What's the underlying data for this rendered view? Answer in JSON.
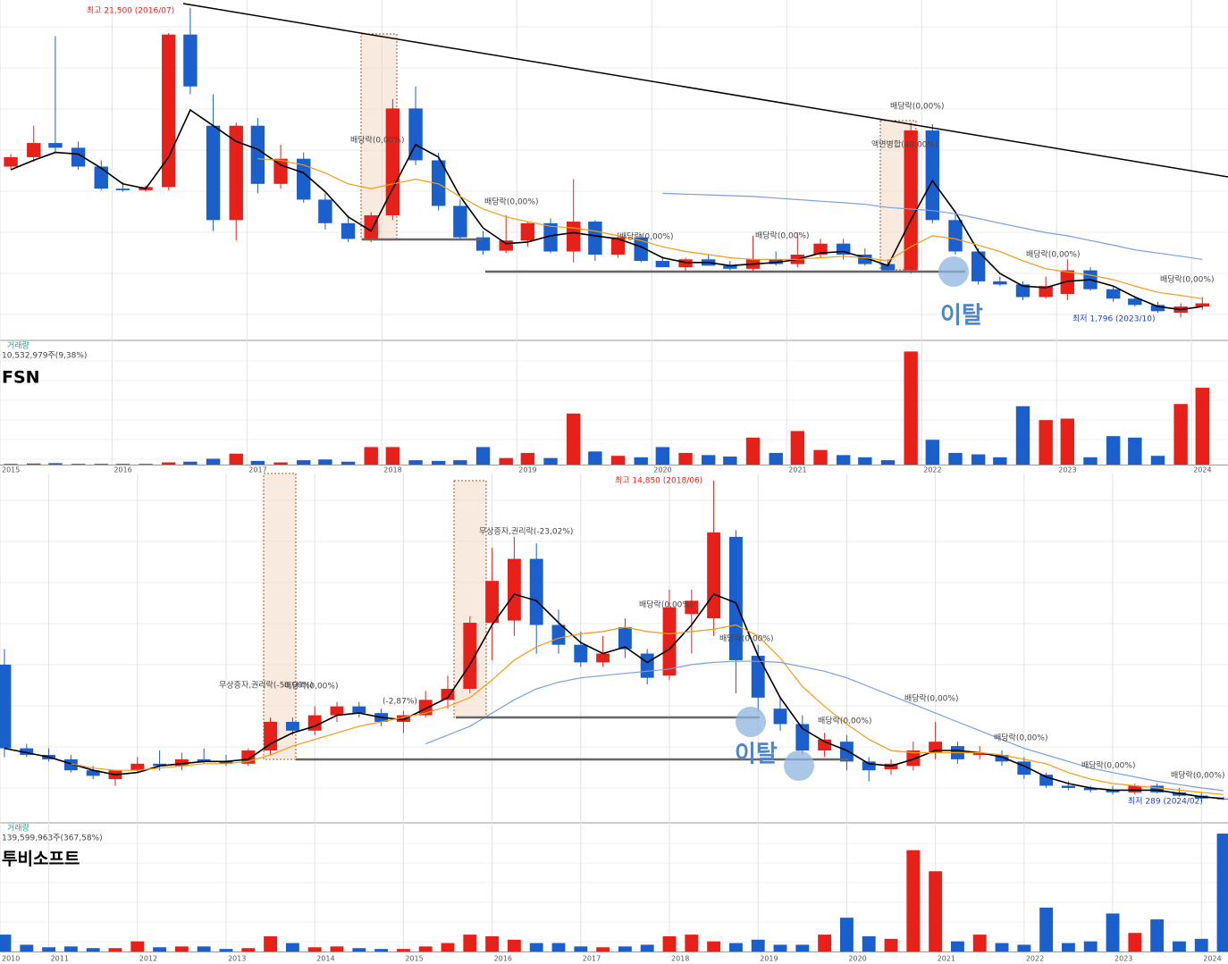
{
  "chart_data": [
    {
      "type": "candlestick",
      "title": "FSN",
      "up_color": "#e8201a",
      "down_color": "#1a5fcc",
      "xlim": [
        2015.17,
        2024.27
      ],
      "xticks": [
        {
          "value": 2015.17,
          "label": "2015"
        },
        2016,
        2017,
        2018,
        2019,
        2020,
        2021,
        2022,
        2023,
        2024
      ],
      "ylim": [
        400,
        22000
      ],
      "x": [
        2015.25,
        2015.42,
        2015.58,
        2015.75,
        2015.92,
        2016.08,
        2016.25,
        2016.42,
        2016.58,
        2016.75,
        2016.92,
        2017.08,
        2017.25,
        2017.42,
        2017.58,
        2017.75,
        2017.92,
        2018.08,
        2018.25,
        2018.42,
        2018.58,
        2018.75,
        2018.92,
        2019.08,
        2019.25,
        2019.42,
        2019.58,
        2019.75,
        2019.92,
        2020.08,
        2020.25,
        2020.42,
        2020.58,
        2020.75,
        2020.92,
        2021.08,
        2021.25,
        2021.42,
        2021.58,
        2021.75,
        2021.92,
        2022.08,
        2022.25,
        2022.42,
        2022.58,
        2022.75,
        2022.92,
        2023.08,
        2023.25,
        2023.42,
        2023.58,
        2023.75,
        2023.92,
        2024.08
      ],
      "open": [
        11400,
        12000,
        12900,
        12600,
        11400,
        10000,
        9900,
        10100,
        19800,
        14000,
        8000,
        14000,
        10300,
        11900,
        9300,
        7800,
        6800,
        8300,
        15100,
        11800,
        8900,
        6900,
        6050,
        6700,
        7800,
        6000,
        7900,
        5800,
        6900,
        5400,
        5000,
        5500,
        5100,
        4900,
        5500,
        5200,
        5800,
        6500,
        5800,
        5200,
        4800,
        13700,
        8000,
        6000,
        4100,
        3900,
        3100,
        3300,
        4800,
        3600,
        3000,
        2600,
        2100,
        2500
      ],
      "high": [
        12200,
        14000,
        19700,
        13000,
        11800,
        10400,
        10200,
        19900,
        21500,
        16000,
        14200,
        14500,
        12800,
        12300,
        9700,
        8300,
        8500,
        15700,
        16500,
        12300,
        9300,
        7300,
        8300,
        7900,
        8100,
        10600,
        8000,
        7200,
        7100,
        5700,
        5600,
        5800,
        5400,
        7000,
        6000,
        7200,
        6800,
        6800,
        6200,
        5500,
        14200,
        14100,
        8500,
        6200,
        4400,
        4100,
        4400,
        5500,
        5000,
        3800,
        3200,
        2800,
        2700,
        3100
      ],
      "low": [
        11200,
        11700,
        12300,
        11200,
        9900,
        9800,
        9800,
        9900,
        16000,
        7300,
        6700,
        9700,
        10000,
        9100,
        7400,
        6600,
        6600,
        8000,
        11500,
        8600,
        6700,
        5800,
        5900,
        6300,
        5900,
        5300,
        5400,
        5600,
        5300,
        5000,
        4700,
        5100,
        4800,
        4700,
        5100,
        5000,
        5600,
        5500,
        5100,
        4700,
        4600,
        7800,
        5800,
        3900,
        3800,
        2900,
        3000,
        2900,
        3500,
        2800,
        2500,
        2100,
        1796,
        2300
      ],
      "close": [
        12000,
        12900,
        12600,
        11400,
        10000,
        9900,
        10100,
        19800,
        16500,
        8000,
        14000,
        10300,
        11900,
        9300,
        7800,
        6800,
        8300,
        15100,
        11800,
        8900,
        6900,
        6050,
        6700,
        7800,
        6000,
        7900,
        5800,
        6900,
        5400,
        5000,
        5500,
        5100,
        4900,
        5500,
        5200,
        5800,
        6500,
        5800,
        5200,
        4800,
        13700,
        8000,
        6000,
        4100,
        3900,
        3100,
        3800,
        4800,
        3600,
        3000,
        2600,
        2200,
        2500,
        2700
      ],
      "lines": [
        {
          "color": "#000000",
          "values": [
            11200,
            11800,
            12300,
            12200,
            11300,
            10300,
            10000,
            12000,
            15000,
            14000,
            13000,
            12500,
            11500,
            11000,
            9800,
            8200,
            7300,
            10000,
            12800,
            12000,
            9500,
            7500,
            6500,
            6600,
            7000,
            7200,
            7000,
            6800,
            6300,
            5600,
            5300,
            5300,
            5100,
            5200,
            5300,
            5500,
            5900,
            6000,
            5600,
            5100,
            8000,
            10500,
            8500,
            6000,
            4600,
            3800,
            3700,
            4100,
            4200,
            3800,
            3100,
            2500,
            2300,
            2500
          ]
        },
        {
          "color": "#f39c12",
          "values": [
            null,
            null,
            null,
            null,
            null,
            null,
            null,
            null,
            null,
            null,
            null,
            11900,
            11800,
            11500,
            11000,
            10300,
            10000,
            10300,
            10600,
            10300,
            9500,
            8700,
            8200,
            7900,
            7600,
            7500,
            7300,
            7000,
            6700,
            6300,
            6000,
            5800,
            5600,
            5500,
            5500,
            5500,
            5600,
            5700,
            5600,
            5400,
            6300,
            7000,
            6800,
            6400,
            6000,
            5400,
            4900,
            4700,
            4500,
            4200,
            3800,
            3400,
            3200,
            3000
          ]
        },
        {
          "color": "#7b9fe0",
          "values": [
            null,
            null,
            null,
            null,
            null,
            null,
            null,
            null,
            null,
            null,
            null,
            null,
            null,
            null,
            null,
            null,
            null,
            null,
            null,
            null,
            null,
            null,
            null,
            null,
            null,
            null,
            null,
            null,
            null,
            9700,
            9650,
            9600,
            9550,
            9500,
            9400,
            9300,
            9200,
            9100,
            9000,
            8800,
            8700,
            8600,
            8400,
            8100,
            7800,
            7500,
            7200,
            7000,
            6700,
            6400,
            6100,
            5900,
            5700,
            5500
          ]
        }
      ],
      "volume": {
        "label": "거래량",
        "summary": "10,532,979주(9,38%)",
        "ylim": [
          0,
          16900000
        ],
        "values": [
          100000,
          150000,
          200000,
          100000,
          100000,
          100000,
          100000,
          300000,
          400000,
          800000,
          1500000,
          500000,
          300000,
          600000,
          700000,
          400000,
          2400000,
          2400000,
          600000,
          500000,
          600000,
          2400000,
          900000,
          1600000,
          900000,
          7000000,
          1800000,
          1200000,
          1000000,
          2400000,
          1600000,
          1300000,
          1100000,
          3700000,
          1600000,
          4600000,
          2000000,
          1300000,
          1000000,
          600000,
          15500000,
          3400000,
          1600000,
          1400000,
          1000000,
          8000000,
          6100000,
          6300000,
          1000000,
          3900000,
          3700000,
          1200000,
          8300000,
          10532979
        ]
      },
      "annotations": [
        "최고 21,500 (2016/07)",
        "배당락(0,00%)",
        "배당락(0,00%)",
        "배당락(0,00%)",
        "배당락(0,00%)",
        "배당락(0,00%)",
        "액면병합(40,00%)",
        "배당락(0,00%)",
        "배당락(0,00%)",
        "최저 1,796 (2023/10)",
        "이탈"
      ]
    },
    {
      "type": "candlestick",
      "title": "투비소프트",
      "up_color": "#e8201a",
      "down_color": "#1a5fcc",
      "xlim": [
        2010.45,
        2024.3
      ],
      "xticks": [
        {
          "value": 2010.45,
          "label": "2010"
        },
        2011,
        2012,
        2013,
        2014,
        2015,
        2016,
        2017,
        2018,
        2019,
        2020,
        2021,
        2022,
        2023,
        2024
      ],
      "ylim": [
        -644,
        15175
      ],
      "x": [
        2010.5,
        2010.75,
        2011,
        2011.25,
        2011.5,
        2011.75,
        2012,
        2012.25,
        2012.5,
        2012.75,
        2013,
        2013.25,
        2013.5,
        2013.75,
        2014,
        2014.25,
        2014.5,
        2014.75,
        2015,
        2015.25,
        2015.5,
        2015.75,
        2016,
        2016.25,
        2016.5,
        2016.75,
        2017,
        2017.25,
        2017.5,
        2017.75,
        2018,
        2018.25,
        2018.5,
        2018.75,
        2019,
        2019.25,
        2019.5,
        2019.75,
        2020,
        2020.25,
        2020.5,
        2020.75,
        2021,
        2021.25,
        2021.5,
        2021.75,
        2022,
        2022.25,
        2022.5,
        2022.75,
        2023,
        2023.25,
        2023.5,
        2023.75,
        2024,
        2024.25
      ],
      "open": [
        6500,
        2700,
        2400,
        2200,
        1700,
        1300,
        1700,
        2000,
        1900,
        2200,
        2100,
        2000,
        2600,
        3900,
        3500,
        4200,
        4600,
        4300,
        3900,
        4200,
        4900,
        5400,
        8400,
        8500,
        11300,
        8300,
        7400,
        6600,
        8200,
        7000,
        6000,
        8800,
        8600,
        12300,
        6900,
        4500,
        3800,
        2600,
        3000,
        2100,
        1750,
        1900,
        2500,
        2800,
        2400,
        2400,
        2100,
        1500,
        1000,
        900,
        800,
        700,
        1000,
        700,
        550,
        420
      ],
      "high": [
        7200,
        2900,
        2700,
        2400,
        1900,
        1700,
        2300,
        2600,
        2500,
        2700,
        2400,
        2700,
        4100,
        4100,
        4600,
        4800,
        4800,
        4500,
        4400,
        5300,
        6000,
        8700,
        11800,
        12300,
        12000,
        9000,
        8000,
        7800,
        8600,
        7200,
        9900,
        9900,
        14850,
        12600,
        7400,
        5000,
        4200,
        3400,
        3300,
        2300,
        2200,
        3000,
        3900,
        3000,
        2800,
        2600,
        2300,
        1600,
        1200,
        1000,
        1000,
        1100,
        1100,
        900,
        700,
        500
      ],
      "low": [
        2300,
        2300,
        2100,
        1600,
        1300,
        1000,
        1600,
        1700,
        1700,
        2000,
        1900,
        1900,
        2400,
        3300,
        3300,
        3900,
        4100,
        3700,
        3400,
        4100,
        4500,
        5200,
        6700,
        7800,
        7000,
        7000,
        6400,
        6400,
        6800,
        5600,
        5800,
        7000,
        7800,
        5200,
        4400,
        3500,
        2400,
        2300,
        1700,
        1200,
        1500,
        1700,
        2200,
        2000,
        2200,
        1900,
        1300,
        900,
        800,
        700,
        600,
        600,
        650,
        500,
        289,
        350
      ],
      "close": [
        2700,
        2400,
        2200,
        1700,
        1450,
        1700,
        2000,
        1900,
        2200,
        2100,
        2000,
        2600,
        3900,
        3500,
        4200,
        4600,
        4300,
        3900,
        4200,
        4900,
        5400,
        8400,
        10300,
        11300,
        8300,
        7400,
        6600,
        7000,
        7200,
        5900,
        9100,
        9400,
        12500,
        6700,
        5000,
        3800,
        2600,
        3100,
        2100,
        1700,
        2000,
        2600,
        3000,
        2200,
        2500,
        2100,
        1500,
        1000,
        900,
        800,
        700,
        1000,
        700,
        550,
        420,
        380
      ],
      "lines": [
        {
          "color": "#000000",
          "values": [
            2700,
            2500,
            2300,
            2000,
            1700,
            1500,
            1600,
            1900,
            2000,
            2100,
            2100,
            2200,
            2900,
            3400,
            3700,
            4200,
            4300,
            4100,
            4000,
            4500,
            5000,
            6500,
            8300,
            9700,
            9400,
            8400,
            7500,
            7000,
            7300,
            6600,
            7200,
            8300,
            9700,
            9300,
            6900,
            5000,
            3600,
            3000,
            2600,
            2000,
            1900,
            2200,
            2600,
            2600,
            2500,
            2300,
            1900,
            1400,
            1100,
            900,
            800,
            800,
            800,
            650,
            500,
            420
          ]
        },
        {
          "color": "#f39c12",
          "values": [
            null,
            null,
            null,
            2000,
            1800,
            1700,
            1700,
            1800,
            1900,
            2000,
            2000,
            2100,
            2400,
            2800,
            3100,
            3400,
            3700,
            3900,
            4100,
            4300,
            4600,
            5000,
            5800,
            6700,
            7300,
            7700,
            7900,
            8000,
            8200,
            8000,
            7900,
            8000,
            8100,
            8300,
            7800,
            6800,
            5500,
            4600,
            3800,
            3100,
            2600,
            2500,
            2500,
            2500,
            2500,
            2400,
            2200,
            2000,
            1600,
            1300,
            1100,
            1000,
            900,
            800,
            700,
            600
          ]
        },
        {
          "color": "#7b9fe0",
          "values": [
            null,
            null,
            null,
            null,
            null,
            null,
            null,
            null,
            null,
            null,
            null,
            null,
            null,
            null,
            null,
            null,
            null,
            null,
            null,
            2900,
            3300,
            3700,
            4300,
            4900,
            5400,
            5700,
            5900,
            6000,
            6100,
            6200,
            6300,
            6500,
            6600,
            6650,
            6650,
            6600,
            6400,
            6200,
            5900,
            5500,
            5100,
            4700,
            4300,
            3900,
            3500,
            3100,
            2700,
            2400,
            2100,
            1800,
            1600,
            1400,
            1200,
            1050,
            900,
            780
          ]
        }
      ],
      "volume": {
        "label": "거래량",
        "summary": "139,599,963주(367,58%)",
        "ylim": [
          0,
          151300000
        ],
        "values": [
          20000000,
          8000000,
          5000000,
          6000000,
          4000000,
          4000000,
          12000000,
          5000000,
          6000000,
          6000000,
          3000000,
          4000000,
          18000000,
          10000000,
          5000000,
          6000000,
          4000000,
          3000000,
          3000000,
          6000000,
          10000000,
          20000000,
          18000000,
          14000000,
          10000000,
          10000000,
          6000000,
          5000000,
          6000000,
          8000000,
          18000000,
          20000000,
          12000000,
          10000000,
          14000000,
          8000000,
          8000000,
          20000000,
          40000000,
          18000000,
          15000000,
          120000000,
          95000000,
          12000000,
          20000000,
          10000000,
          8000000,
          52000000,
          10000000,
          12000000,
          45000000,
          22000000,
          38000000,
          12000000,
          15000000,
          139599963
        ]
      },
      "annotations": [
        "최고 14,850 (2018/06)",
        "무상증자,권리락(-23,02%)",
        "무상증자,권리락(-50,00%)",
        "배당락(0,00%)",
        "(-2,87%)",
        "배당락(0,00%)",
        "배당락(0,00%)",
        "배당락(0,00%)",
        "배당락(0,00%)",
        "배당락(0,00%)",
        "배당락(0,00%)",
        "배당락(0,00%)",
        "최저 289 (2024/02)",
        "이탈"
      ]
    }
  ]
}
